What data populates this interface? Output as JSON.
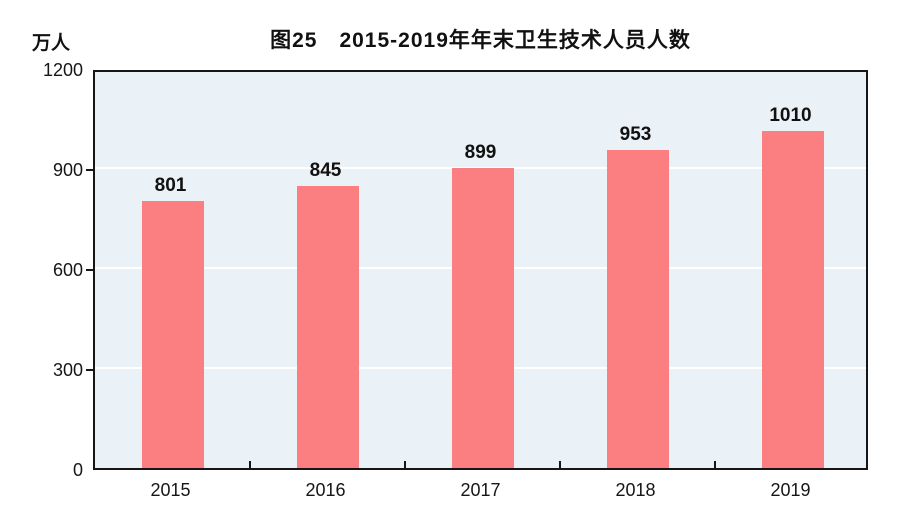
{
  "figure": {
    "title": "图25　2015-2019年年末卫生技术人员人数",
    "unit_label": "万人"
  },
  "chart_data": {
    "type": "bar",
    "title": "图25　2015-2019年年末卫生技术人员人数",
    "unit": "万人",
    "categories": [
      "2015",
      "2016",
      "2017",
      "2018",
      "2019"
    ],
    "values": [
      801,
      845,
      899,
      953,
      1010
    ],
    "xlabel": "",
    "ylabel": "万人",
    "ylim": [
      0,
      1200
    ],
    "yticks": [
      0,
      300,
      600,
      900,
      1200
    ],
    "grid": true,
    "legend": "none",
    "colors": {
      "bar": "#fb7e81",
      "plot_background": "#eaf1f7",
      "gridline": "#ffffff",
      "axis": "#161616",
      "text": "#111111"
    }
  }
}
